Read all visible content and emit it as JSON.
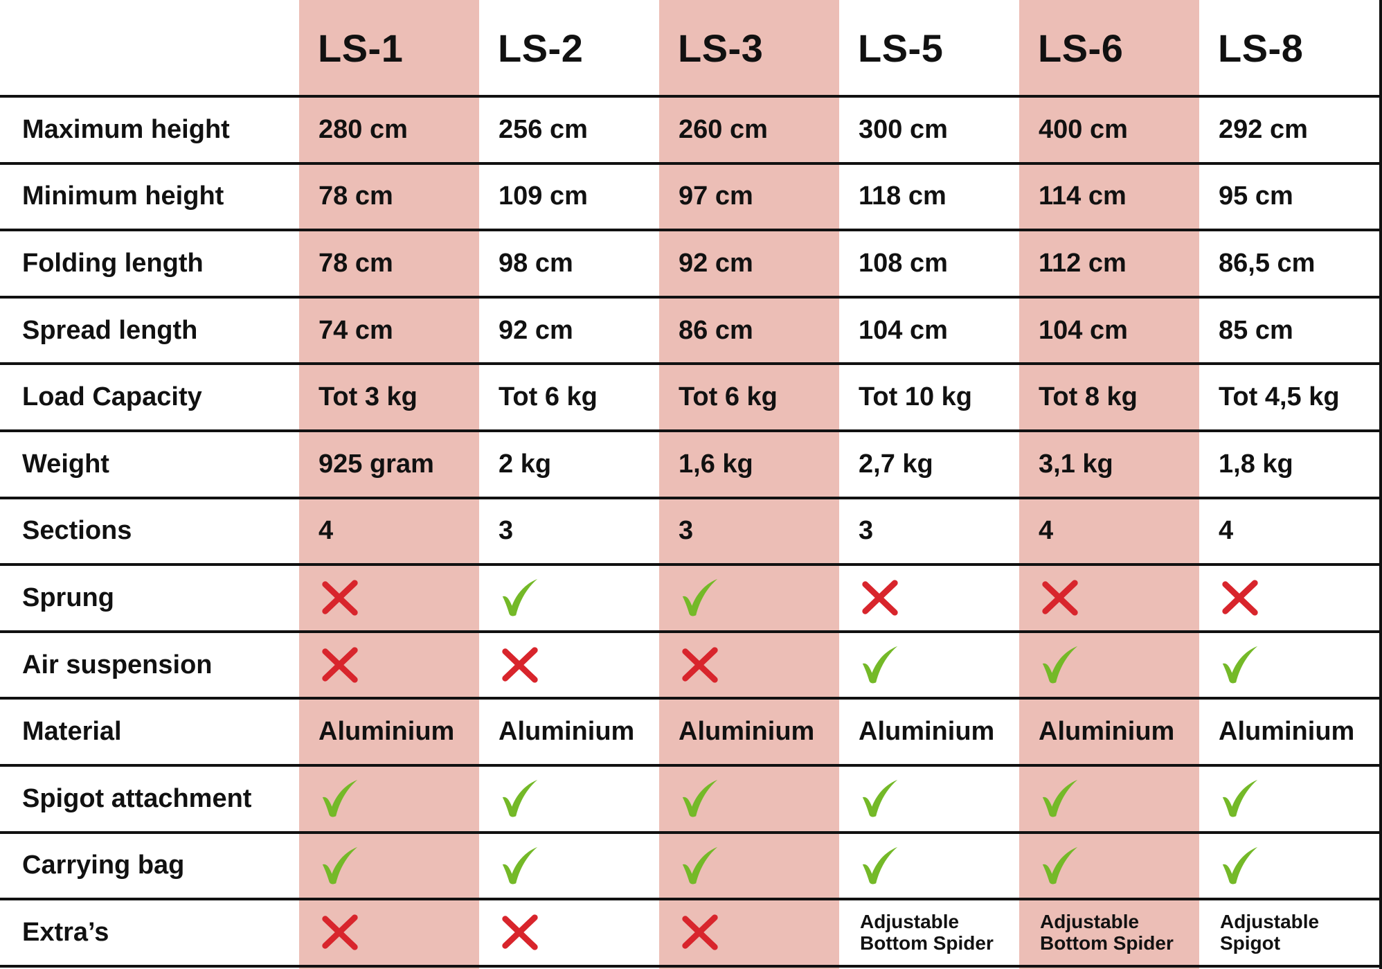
{
  "colors": {
    "highlight": "#ecbeb6",
    "check": "#74b928",
    "cross": "#d8252c",
    "grid": "#111111"
  },
  "columns": [
    "LS-1",
    "LS-2",
    "LS-3",
    "LS-5",
    "LS-6",
    "LS-8"
  ],
  "rows": [
    {
      "label": "Maximum height",
      "values": [
        "280 cm",
        "256 cm",
        "260 cm",
        "300 cm",
        "400 cm",
        "292 cm"
      ]
    },
    {
      "label": "Minimum height",
      "values": [
        "78 cm",
        "109 cm",
        "97 cm",
        "118 cm",
        "114 cm",
        "95 cm"
      ]
    },
    {
      "label": "Folding length",
      "values": [
        "78 cm",
        "98 cm",
        "92 cm",
        "108 cm",
        "112 cm",
        "86,5 cm"
      ]
    },
    {
      "label": "Spread length",
      "values": [
        "74 cm",
        "92 cm",
        "86 cm",
        "104 cm",
        "104 cm",
        "85 cm"
      ]
    },
    {
      "label": "Load Capacity",
      "values": [
        "Tot 3 kg",
        "Tot 6 kg",
        "Tot 6 kg",
        "Tot 10 kg",
        "Tot 8 kg",
        "Tot 4,5 kg"
      ]
    },
    {
      "label": "Weight",
      "values": [
        "925 gram",
        "2 kg",
        "1,6 kg",
        "2,7 kg",
        "3,1 kg",
        "1,8 kg"
      ]
    },
    {
      "label": "Sections",
      "values": [
        "4",
        "3",
        "3",
        "3",
        "4",
        "4"
      ]
    },
    {
      "label": "Sprung",
      "values": [
        false,
        true,
        true,
        false,
        false,
        false
      ]
    },
    {
      "label": "Air suspension",
      "values": [
        false,
        false,
        false,
        true,
        true,
        true
      ]
    },
    {
      "label": "Material",
      "values": [
        "Aluminium",
        "Aluminium",
        "Aluminium",
        "Aluminium",
        "Aluminium",
        "Aluminium"
      ]
    },
    {
      "label": "Spigot attachment",
      "values": [
        true,
        true,
        true,
        true,
        true,
        true
      ]
    },
    {
      "label": "Carrying bag",
      "values": [
        true,
        true,
        true,
        true,
        true,
        true
      ]
    },
    {
      "label": "Extra’s",
      "values": [
        false,
        false,
        false,
        "Adjustable\nBottom Spider",
        "Adjustable\nBottom Spider",
        "Adjustable\nSpigot"
      ]
    }
  ],
  "icons": {
    "yes": "checkmark-icon",
    "no": "cross-icon"
  }
}
